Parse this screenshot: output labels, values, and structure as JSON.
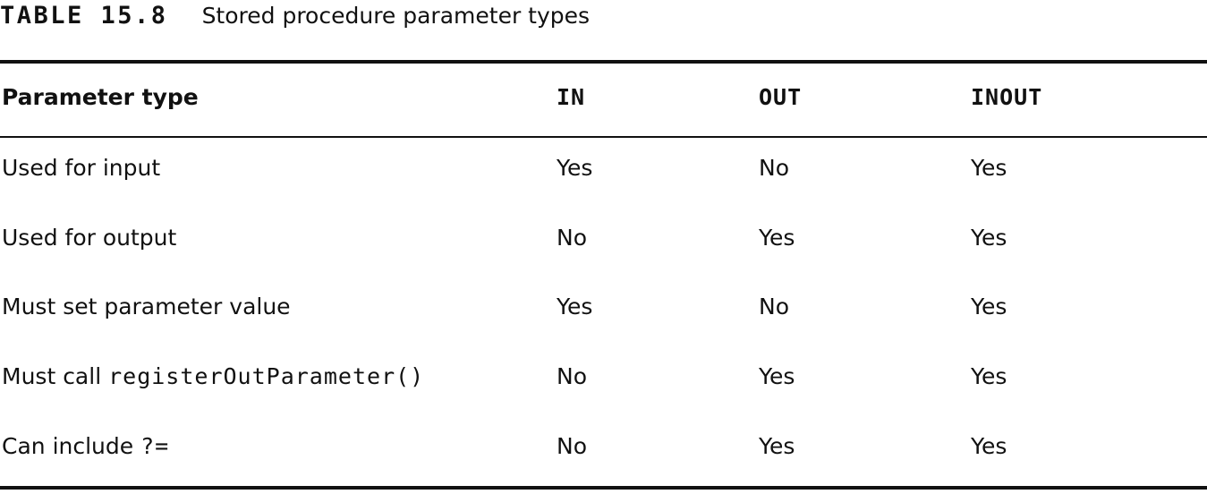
{
  "caption": {
    "label": "TABLE 15.8",
    "title": "Stored procedure parameter types"
  },
  "table": {
    "headers": [
      "Parameter type",
      "IN",
      "OUT",
      "INOUT"
    ],
    "rows": [
      {
        "label_text": "Used for input",
        "label_code": "",
        "values": [
          "Yes",
          "No",
          "Yes"
        ]
      },
      {
        "label_text": "Used for output",
        "label_code": "",
        "values": [
          "No",
          "Yes",
          "Yes"
        ]
      },
      {
        "label_text": "Must set parameter value",
        "label_code": "",
        "values": [
          "Yes",
          "No",
          "Yes"
        ]
      },
      {
        "label_text": "Must call ",
        "label_code": "registerOutParameter()",
        "values": [
          "No",
          "Yes",
          "Yes"
        ]
      },
      {
        "label_text": "Can include ",
        "label_code": "?=",
        "values": [
          "No",
          "Yes",
          "Yes"
        ]
      }
    ]
  }
}
